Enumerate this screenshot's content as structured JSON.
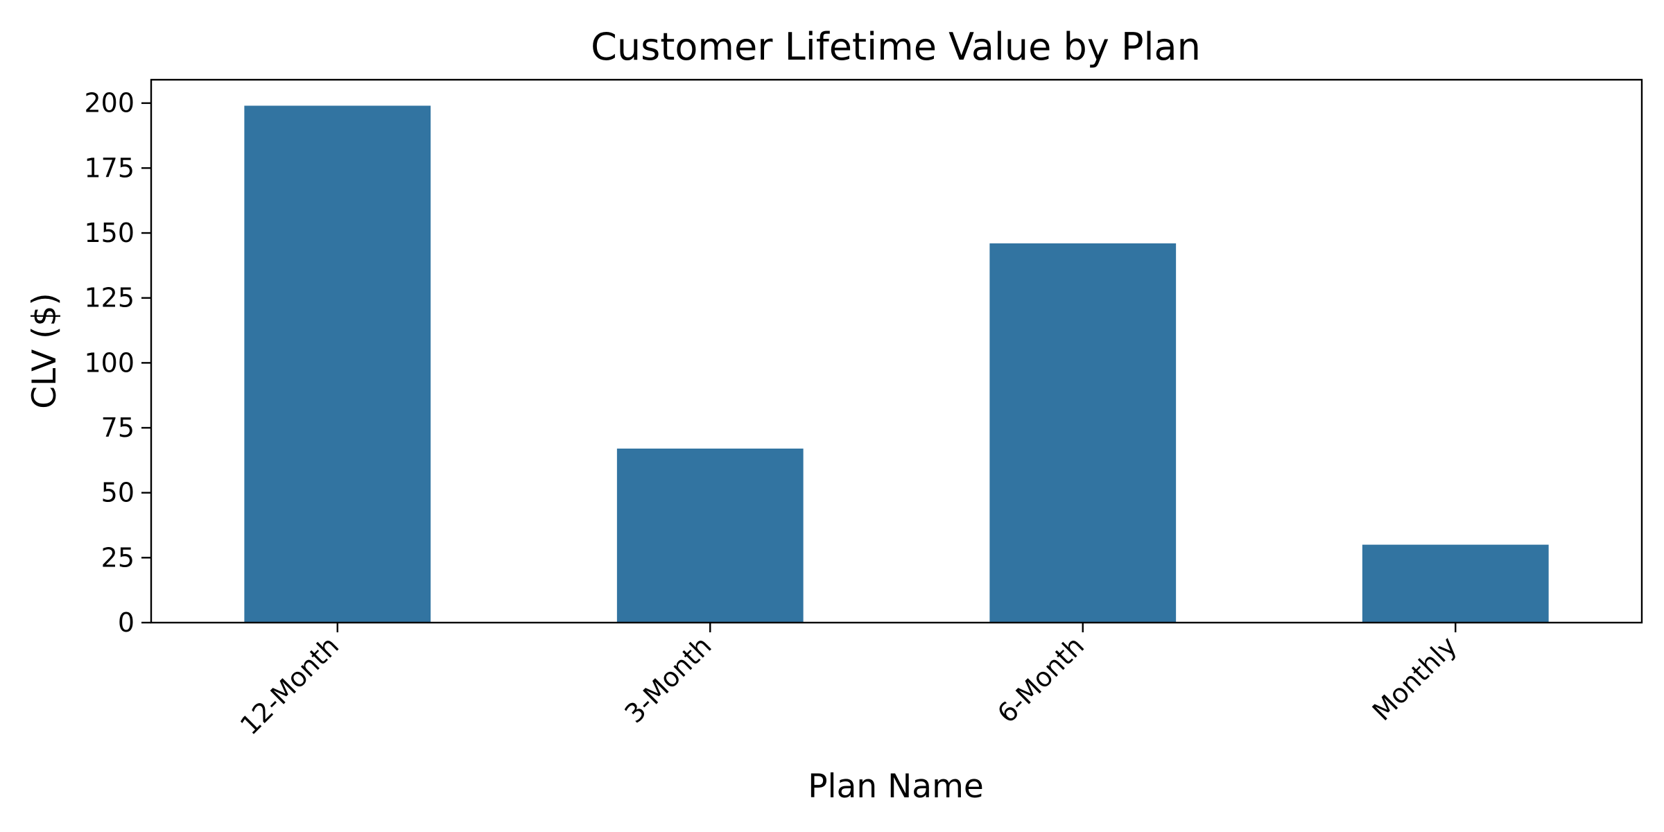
{
  "chart_data": {
    "type": "bar",
    "title": "Customer Lifetime Value by Plan",
    "xlabel": "Plan Name",
    "ylabel": "CLV ($)",
    "categories": [
      "12-Month",
      "3-Month",
      "6-Month",
      "Monthly"
    ],
    "values": [
      199,
      67,
      146,
      30
    ],
    "ylim": [
      0,
      209
    ],
    "yticks": [
      0,
      25,
      50,
      75,
      100,
      125,
      150,
      175,
      200
    ],
    "ytick_labels": [
      "0",
      "25",
      "50",
      "75",
      "100",
      "125",
      "150",
      "175",
      "200"
    ],
    "bar_color": "#3274a1",
    "grid": false,
    "legend": "none"
  }
}
